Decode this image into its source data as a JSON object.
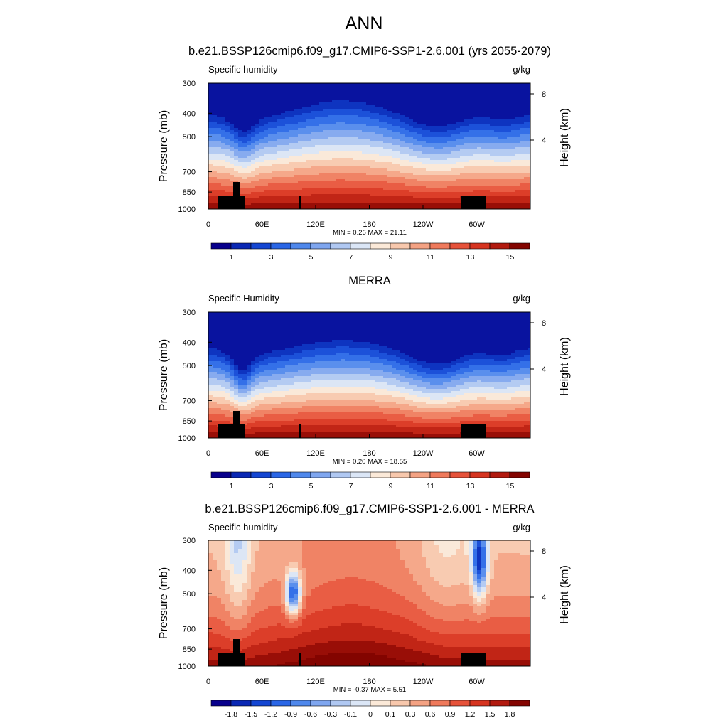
{
  "figure": {
    "title": "ANN"
  },
  "chart_data": [
    {
      "type": "heatmap",
      "title": "b.e21.BSSP126cmip6.f09_g17.CMIP6-SSP1-2.6.001 (yrs 2055-2079)",
      "left_label": "Specific humidity",
      "right_label": "g/kg",
      "ylabel": "Pressure (mb)",
      "ylabel_right": "Height (km)",
      "x_ticks": [
        "0",
        "60E",
        "120E",
        "180",
        "120W",
        "60W"
      ],
      "y_ticks": [
        "300",
        "400",
        "500",
        "700",
        "850",
        "1000"
      ],
      "y_right_ticks": [
        "8",
        "4"
      ],
      "stats": "MIN =   0.26  MAX =  21.11",
      "min": 0.26,
      "max": 21.11,
      "colorbar_labels": [
        "1",
        "3",
        "5",
        "7",
        "9",
        "11",
        "13",
        "15"
      ]
    },
    {
      "type": "heatmap",
      "title": "MERRA",
      "left_label": "Specific Humidity",
      "right_label": "g/kg",
      "ylabel": "Pressure (mb)",
      "ylabel_right": "Height (km)",
      "x_ticks": [
        "0",
        "60E",
        "120E",
        "180",
        "120W",
        "60W"
      ],
      "y_ticks": [
        "300",
        "400",
        "500",
        "700",
        "850",
        "1000"
      ],
      "y_right_ticks": [
        "8",
        "4"
      ],
      "stats": "MIN =   0.20  MAX =  18.55",
      "min": 0.2,
      "max": 18.55,
      "colorbar_labels": [
        "1",
        "3",
        "5",
        "7",
        "9",
        "11",
        "13",
        "15"
      ]
    },
    {
      "type": "heatmap",
      "title": "b.e21.BSSP126cmip6.f09_g17.CMIP6-SSP1-2.6.001 - MERRA",
      "left_label": "Specific humidity",
      "right_label": "g/kg",
      "ylabel": "Pressure (mb)",
      "ylabel_right": "Height (km)",
      "x_ticks": [
        "0",
        "60E",
        "120E",
        "180",
        "120W",
        "60W"
      ],
      "y_ticks": [
        "300",
        "400",
        "500",
        "700",
        "850",
        "1000"
      ],
      "y_right_ticks": [
        "8",
        "4"
      ],
      "stats": "MIN =  -0.37  MAX =   5.51",
      "min": -0.37,
      "max": 5.51,
      "colorbar_labels": [
        "-1.8",
        "-1.5",
        "-1.2",
        "-0.9",
        "-0.6",
        "-0.3",
        "-0.1",
        "0",
        "0.1",
        "0.3",
        "0.6",
        "0.9",
        "1.2",
        "1.5",
        "1.8"
      ]
    }
  ],
  "palettes": {
    "sequential": [
      "#08008c",
      "#0a28b4",
      "#1446d2",
      "#2a66e6",
      "#4f88ec",
      "#7fa6ef",
      "#b0c8f2",
      "#dbe6f6",
      "#fbe9d8",
      "#f8c8ad",
      "#f4a283",
      "#ef7a5c",
      "#e6523a",
      "#d63420",
      "#b21a0f",
      "#830400"
    ],
    "difference": [
      "#08008c",
      "#0a28b4",
      "#1446d2",
      "#2a66e6",
      "#4f88ec",
      "#7fa6ef",
      "#b0c8f2",
      "#dbe6f6",
      "#fbe9d8",
      "#f8c8ad",
      "#f4a283",
      "#ef7a5c",
      "#e6523a",
      "#d63420",
      "#b21a0f",
      "#830400"
    ]
  }
}
